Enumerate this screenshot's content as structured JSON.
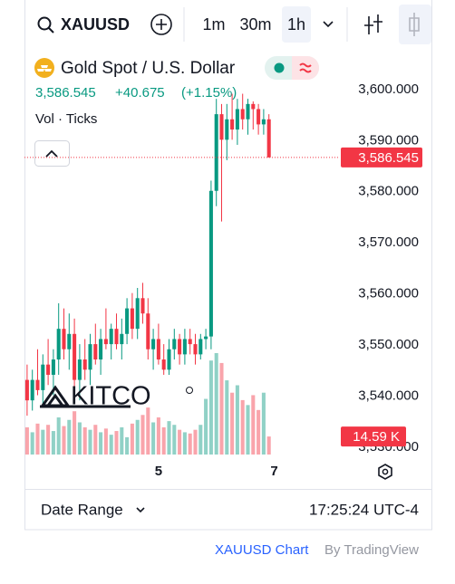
{
  "toolbar": {
    "symbol": "XAUUSD",
    "intervals": [
      "1m",
      "30m",
      "1h"
    ],
    "active_interval": 2
  },
  "legend": {
    "title": "Gold Spot / U.S. Dollar",
    "price": "3,586.545",
    "change": "+40.675",
    "change_pct": "(+1.15%)",
    "indicator": "Vol · Ticks"
  },
  "watermark": "KITCO",
  "footer_bar": {
    "date_range": "Date Range",
    "time": "17:25:24 UTC-4"
  },
  "attribution": {
    "link": "XAUUSD Chart",
    "by": "By TradingView"
  },
  "chart_data": {
    "type": "candlestick",
    "up_color": "#089981",
    "down_color": "#f23645",
    "xlim": [
      -0.5,
      59.5
    ],
    "xticks": [
      {
        "value": 25,
        "label": "5"
      },
      {
        "value": 47,
        "label": "7"
      }
    ],
    "ylim": [
      3528.4,
      3607.6
    ],
    "yticks": [
      {
        "value": 3530,
        "label": "3,530.000"
      },
      {
        "value": 3540,
        "label": "3,540.000"
      },
      {
        "value": 3550,
        "label": "3,550.000"
      },
      {
        "value": 3560,
        "label": "3,560.000"
      },
      {
        "value": 3570,
        "label": "3,570.000"
      },
      {
        "value": 3580,
        "label": "3,580.000"
      },
      {
        "value": 3590,
        "label": "3,590.000"
      },
      {
        "value": 3600,
        "label": "3,600.000"
      }
    ],
    "ohlc": [
      [
        3543,
        3546,
        3536,
        3539
      ],
      [
        3539,
        3545,
        3537,
        3543
      ],
      [
        3543,
        3549,
        3540,
        3541
      ],
      [
        3541,
        3548,
        3538,
        3546
      ],
      [
        3546,
        3551,
        3542,
        3544
      ],
      [
        3544,
        3549,
        3540,
        3547
      ],
      [
        3547,
        3558,
        3544,
        3553
      ],
      [
        3553,
        3557,
        3547,
        3549
      ],
      [
        3549,
        3556,
        3545,
        3552
      ],
      [
        3552,
        3555,
        3541,
        3543
      ],
      [
        3543,
        3550,
        3539,
        3547
      ],
      [
        3547,
        3551,
        3543,
        3545
      ],
      [
        3545,
        3552,
        3542,
        3550
      ],
      [
        3550,
        3554,
        3546,
        3547
      ],
      [
        3547,
        3553,
        3544,
        3551
      ],
      [
        3551,
        3557,
        3549,
        3550
      ],
      [
        3550,
        3554,
        3547,
        3553
      ],
      [
        3553,
        3556,
        3549,
        3550
      ],
      [
        3550,
        3555,
        3547,
        3552
      ],
      [
        3552,
        3559,
        3550,
        3557
      ],
      [
        3557,
        3560,
        3551,
        3553
      ],
      [
        3553,
        3561,
        3551,
        3559
      ],
      [
        3559,
        3562,
        3554,
        3556
      ],
      [
        3556,
        3559,
        3547,
        3549
      ],
      [
        3549,
        3553,
        3545,
        3551
      ],
      [
        3551,
        3554,
        3546,
        3547
      ],
      [
        3547,
        3550,
        3544,
        3545
      ],
      [
        3545,
        3551,
        3544,
        3549
      ],
      [
        3549,
        3553,
        3547,
        3551
      ],
      [
        3551,
        3552,
        3546,
        3548
      ],
      [
        3548,
        3553,
        3546,
        3551
      ],
      [
        3551,
        3553,
        3548,
        3550
      ],
      [
        3550,
        3552,
        3546,
        3548
      ],
      [
        3548,
        3552,
        3547,
        3551
      ],
      [
        3551,
        3553,
        3549,
        3551.5
      ],
      [
        3551.5,
        3582,
        3549,
        3580
      ],
      [
        3580,
        3598,
        3577,
        3595
      ],
      [
        3595,
        3597,
        3574,
        3590
      ],
      [
        3590,
        3597,
        3586,
        3594
      ],
      [
        3594,
        3599,
        3590,
        3592
      ],
      [
        3592,
        3598,
        3589,
        3596
      ],
      [
        3596,
        3599,
        3592,
        3594
      ],
      [
        3594,
        3598,
        3591,
        3597
      ],
      [
        3597,
        3597.5,
        3592,
        3596
      ],
      [
        3596,
        3597,
        3591,
        3593
      ],
      [
        3593,
        3596,
        3591,
        3594
      ],
      [
        3594,
        3595,
        3586.545,
        3586.545
      ]
    ],
    "last_price": {
      "value": 3586.545,
      "label": "3,586.545"
    },
    "volume": {
      "values": [
        22,
        18,
        25,
        20,
        24,
        19,
        30,
        23,
        28,
        35,
        26,
        22,
        20,
        24,
        18,
        21,
        16,
        19,
        22,
        14,
        25,
        28,
        32,
        38,
        26,
        30,
        22,
        27,
        24,
        20,
        18,
        17,
        20,
        24,
        45,
        76,
        82,
        74,
        60,
        50,
        56,
        44,
        40,
        48,
        36,
        50,
        14.59
      ],
      "last_label": "14.59 K"
    }
  }
}
